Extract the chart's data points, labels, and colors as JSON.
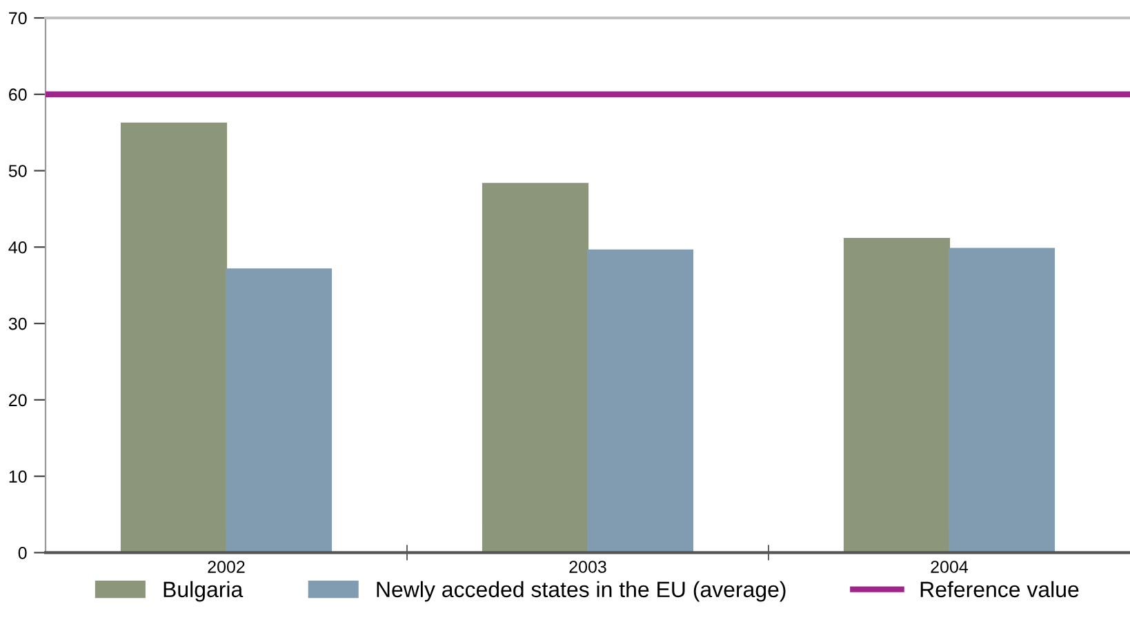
{
  "chart_data": {
    "type": "bar",
    "categories": [
      "2002",
      "2003",
      "2004"
    ],
    "series": [
      {
        "name": "Bulgaria",
        "color": "#8b967a",
        "values": [
          56.2,
          48.3,
          41.1
        ]
      },
      {
        "name": "Newly acceded states in the EU (average)",
        "color": "#819cb1",
        "values": [
          37.1,
          39.6,
          39.8
        ]
      }
    ],
    "ref_lines": [
      {
        "axis": "y",
        "value": 60,
        "label": "Reference value",
        "color": "#a0248c",
        "line_style": "solid"
      }
    ],
    "ylim": [
      0,
      70
    ],
    "yticks": [
      0,
      10,
      20,
      30,
      40,
      50,
      60,
      70
    ],
    "grid": false,
    "legend": "bottom"
  }
}
